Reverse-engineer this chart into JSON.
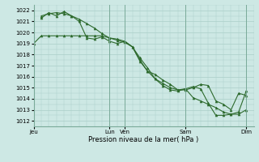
{
  "bg_color": "#cde8e4",
  "plot_bg": "#cde8e4",
  "grid_color": "#aacec8",
  "line_color": "#2d6a2d",
  "title": "Pression niveau de la mer( hPa )",
  "ylim": [
    1011.5,
    1022.5
  ],
  "yticks": [
    1012,
    1013,
    1014,
    1015,
    1016,
    1017,
    1018,
    1019,
    1020,
    1021,
    1022
  ],
  "day_labels": [
    "Jeu",
    "Lun",
    "Ven",
    "Sam",
    "Dim"
  ],
  "day_positions": [
    0,
    60,
    72,
    120,
    168
  ],
  "xlim": [
    0,
    174
  ],
  "series1_x": [
    0,
    6,
    12,
    18,
    24,
    30,
    36,
    42,
    48,
    54,
    60,
    66,
    72,
    78,
    84,
    90,
    96,
    102,
    108,
    114,
    120,
    126,
    132,
    138,
    144,
    150,
    156,
    162,
    168
  ],
  "series1_y": [
    1019.0,
    1019.7,
    1019.7,
    1019.7,
    1019.7,
    1019.7,
    1019.7,
    1019.7,
    1019.7,
    1019.7,
    1019.5,
    1019.3,
    1019.1,
    1018.7,
    1017.7,
    1016.8,
    1015.8,
    1015.2,
    1014.8,
    1014.7,
    1014.9,
    1014.1,
    1013.8,
    1013.5,
    1013.2,
    1012.8,
    1012.6,
    1012.6,
    1013.0
  ],
  "series2_x": [
    6,
    12,
    18,
    24,
    30,
    36,
    42,
    48,
    54,
    60,
    66,
    72,
    78,
    84,
    90,
    96,
    102,
    108,
    114,
    120,
    126,
    132,
    138,
    144,
    150,
    156,
    162,
    168
  ],
  "series2_y": [
    1021.5,
    1021.7,
    1021.8,
    1021.7,
    1021.5,
    1021.2,
    1020.8,
    1020.4,
    1019.9,
    1019.5,
    1019.4,
    1019.2,
    1018.7,
    1017.4,
    1016.5,
    1015.8,
    1015.4,
    1015.0,
    1014.8,
    1014.8,
    1015.0,
    1015.3,
    1015.2,
    1013.8,
    1013.5,
    1013.0,
    1014.5,
    1014.3
  ],
  "series3_x": [
    6,
    12,
    18,
    24,
    30,
    36,
    42,
    48,
    54,
    60,
    66,
    72,
    78,
    84,
    90,
    96,
    102,
    108,
    114,
    120,
    126,
    132,
    138,
    144,
    150,
    156,
    162,
    168
  ],
  "series3_y": [
    1021.3,
    1021.8,
    1021.5,
    1021.9,
    1021.5,
    1021.0,
    1019.5,
    1019.4,
    1019.6,
    1019.2,
    1019.0,
    1019.2,
    1018.7,
    1017.5,
    1016.5,
    1016.2,
    1015.7,
    1015.3,
    1014.8,
    1014.9,
    1015.1,
    1014.9,
    1013.6,
    1012.5,
    1012.5,
    1012.6,
    1012.8,
    1014.7
  ]
}
